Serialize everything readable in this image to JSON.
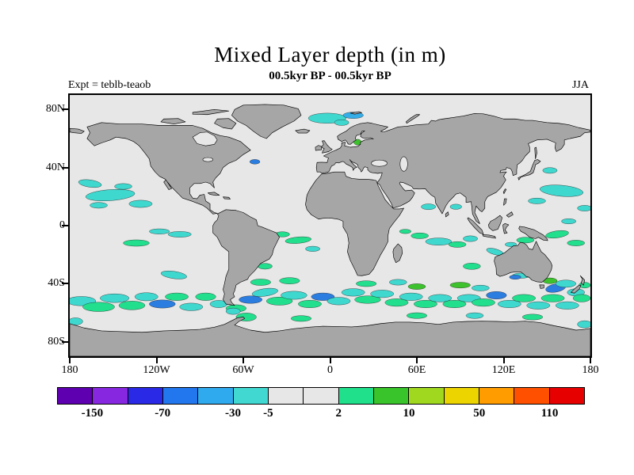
{
  "header": {
    "title": "Mixed Layer depth (in m)",
    "subtitle": "00.5kyr BP - 00.5kyr BP",
    "experiment": "Expt = teblb-teaob",
    "season": "JJA"
  },
  "map": {
    "ocean_color": "#e7e7e7",
    "land_color": "#a6a6a6",
    "lat_ticks": [
      {
        "label": "80N",
        "lat": 80
      },
      {
        "label": "40N",
        "lat": 40
      },
      {
        "label": "0",
        "lat": 0
      },
      {
        "label": "40S",
        "lat": -40
      },
      {
        "label": "80S",
        "lat": -80
      }
    ],
    "lon_ticks": [
      {
        "label": "180",
        "lon": -180
      },
      {
        "label": "120W",
        "lon": -120
      },
      {
        "label": "60W",
        "lon": -60
      },
      {
        "label": "0",
        "lon": 0
      },
      {
        "label": "60E",
        "lon": 60
      },
      {
        "label": "120E",
        "lon": 120
      },
      {
        "label": "180",
        "lon": 180
      }
    ]
  },
  "colorbar": {
    "tick_labels": [
      "-150",
      "-70",
      "-30",
      "-5",
      "2",
      "10",
      "50",
      "110"
    ],
    "tick_boundaries": [
      1,
      3,
      5,
      6,
      8,
      10,
      12,
      14
    ],
    "colors": [
      "#5e00b0",
      "#8727e0",
      "#2a2ae6",
      "#2277ee",
      "#30aaee",
      "#40d8d0",
      "#e7e7e7",
      "#e7e7e7",
      "#20e08c",
      "#38c42a",
      "#a0d820",
      "#ecd400",
      "#ff9c00",
      "#ff5000",
      "#e60000"
    ]
  },
  "anomaly_palette": {
    "blue": "#2b7de0",
    "lightblue": "#35aee8",
    "cyan": "#3fd8cf",
    "spring": "#22df8e",
    "green": "#3dc22e"
  },
  "anomaly_regions": [
    [
      -2,
      74,
      13,
      3.5,
      0,
      "cyan"
    ],
    [
      16,
      76,
      7,
      2.2,
      0,
      "lightblue"
    ],
    [
      8,
      71,
      5,
      2,
      0,
      "cyan"
    ],
    [
      19,
      57.5,
      2.6,
      2,
      0,
      "green"
    ],
    [
      -88,
      58,
      3,
      2,
      0,
      "cyan"
    ],
    [
      -52,
      44,
      3.5,
      1.6,
      0,
      "blue"
    ],
    [
      -152,
      21,
      17,
      3.8,
      4,
      "cyan"
    ],
    [
      -166,
      29,
      8,
      2.5,
      -8,
      "cyan"
    ],
    [
      -131,
      15,
      8,
      2.5,
      0,
      "cyan"
    ],
    [
      -143,
      27,
      6,
      2,
      0,
      "cyan"
    ],
    [
      -160,
      14,
      6,
      2,
      0,
      "cyan"
    ],
    [
      152,
      38,
      5,
      2,
      0,
      "cyan"
    ],
    [
      160,
      24,
      15,
      3.8,
      -5,
      "cyan"
    ],
    [
      143,
      17,
      6,
      2,
      0,
      "cyan"
    ],
    [
      176,
      12,
      5,
      2,
      0,
      "cyan"
    ],
    [
      -134,
      -12,
      9,
      2.2,
      0,
      "spring"
    ],
    [
      -104,
      -6,
      8,
      2,
      0,
      "cyan"
    ],
    [
      -118,
      -4,
      7,
      1.8,
      0,
      "cyan"
    ],
    [
      157,
      -6,
      8,
      2.4,
      8,
      "spring"
    ],
    [
      170,
      -12,
      6,
      2,
      0,
      "spring"
    ],
    [
      165,
      3,
      5,
      1.8,
      0,
      "cyan"
    ],
    [
      -22,
      -10,
      9,
      2.2,
      5,
      "spring"
    ],
    [
      -33,
      -6,
      5,
      1.8,
      0,
      "spring"
    ],
    [
      -12,
      -16,
      5,
      1.8,
      0,
      "cyan"
    ],
    [
      68,
      13,
      5,
      2,
      0,
      "cyan"
    ],
    [
      87,
      13,
      4,
      1.8,
      0,
      "cyan"
    ],
    [
      75,
      -11,
      9,
      2.5,
      0,
      "cyan"
    ],
    [
      62,
      -7,
      6,
      2,
      0,
      "spring"
    ],
    [
      88,
      -13,
      6,
      2,
      0,
      "spring"
    ],
    [
      97,
      -9,
      5,
      2,
      0,
      "cyan"
    ],
    [
      52,
      -4,
      4,
      1.5,
      0,
      "spring"
    ],
    [
      98,
      -28,
      6,
      2.2,
      0,
      "spring"
    ],
    [
      114,
      -18,
      6,
      2,
      -15,
      "cyan"
    ],
    [
      135,
      -10,
      6,
      2,
      0,
      "spring"
    ],
    [
      125,
      -13,
      4,
      1.5,
      0,
      "cyan"
    ],
    [
      132,
      -34.5,
      6,
      1.8,
      0,
      "cyan"
    ],
    [
      128,
      -35.5,
      4,
      1.5,
      0,
      "blue"
    ],
    [
      141,
      -35,
      4,
      1.6,
      0,
      "cyan"
    ],
    [
      152,
      -38,
      5,
      2,
      0,
      "green"
    ],
    [
      156,
      -43,
      7,
      2.8,
      10,
      "blue"
    ],
    [
      163,
      -40,
      7,
      2.5,
      0,
      "cyan"
    ],
    [
      170,
      -46,
      6,
      2.5,
      0,
      "cyan"
    ],
    [
      176,
      -41,
      4,
      2,
      0,
      "spring"
    ],
    [
      -172,
      -52,
      10,
      3.2,
      0,
      "cyan"
    ],
    [
      -160,
      -56,
      11,
      3.2,
      0,
      "spring"
    ],
    [
      -149,
      -50,
      10,
      3,
      0,
      "cyan"
    ],
    [
      -137,
      -55,
      9,
      3,
      0,
      "spring"
    ],
    [
      -127,
      -49,
      8,
      2.8,
      0,
      "cyan"
    ],
    [
      -116,
      -54,
      9,
      2.8,
      0,
      "blue"
    ],
    [
      -106,
      -49,
      8,
      2.6,
      0,
      "spring"
    ],
    [
      -96,
      -56,
      8,
      2.6,
      0,
      "cyan"
    ],
    [
      -86,
      -49,
      7,
      2.6,
      0,
      "spring"
    ],
    [
      -108,
      -34,
      9,
      2.5,
      -8,
      "cyan"
    ],
    [
      -77,
      -54,
      6,
      2.5,
      0,
      "cyan"
    ],
    [
      -65,
      -57,
      7,
      2.5,
      0,
      "spring"
    ],
    [
      -55,
      -51,
      8,
      2.6,
      0,
      "blue"
    ],
    [
      -45,
      -46,
      9,
      2.6,
      8,
      "cyan"
    ],
    [
      -48,
      -39,
      7,
      2.2,
      0,
      "spring"
    ],
    [
      -45,
      -28,
      5,
      2,
      0,
      "spring"
    ],
    [
      -35,
      -52,
      9,
      2.8,
      0,
      "spring"
    ],
    [
      -25,
      -48,
      9,
      2.8,
      0,
      "cyan"
    ],
    [
      -14,
      -54,
      8,
      2.6,
      0,
      "spring"
    ],
    [
      -5,
      -49,
      8,
      2.6,
      0,
      "blue"
    ],
    [
      -28,
      -38,
      7,
      2.2,
      0,
      "spring"
    ],
    [
      6,
      -52,
      8,
      2.6,
      0,
      "cyan"
    ],
    [
      16,
      -46,
      8,
      2.6,
      0,
      "cyan"
    ],
    [
      25,
      -40,
      7,
      2,
      0,
      "spring"
    ],
    [
      26,
      -51,
      9,
      2.6,
      0,
      "spring"
    ],
    [
      36,
      -47,
      8,
      2.6,
      0,
      "cyan"
    ],
    [
      46,
      -53,
      8,
      2.6,
      0,
      "spring"
    ],
    [
      47,
      -39,
      6,
      2,
      0,
      "cyan"
    ],
    [
      56,
      -49,
      8,
      2.6,
      0,
      "cyan"
    ],
    [
      60,
      -42,
      6,
      2,
      0,
      "green"
    ],
    [
      66,
      -54,
      8,
      2.6,
      0,
      "spring"
    ],
    [
      76,
      -50,
      8,
      2.6,
      0,
      "cyan"
    ],
    [
      86,
      -54,
      8,
      2.6,
      0,
      "spring"
    ],
    [
      90,
      -41,
      7,
      2,
      0,
      "green"
    ],
    [
      96,
      -50,
      8,
      2.6,
      0,
      "cyan"
    ],
    [
      106,
      -53,
      8,
      2.6,
      0,
      "spring"
    ],
    [
      104,
      -43,
      6,
      2,
      0,
      "cyan"
    ],
    [
      115,
      -48,
      7,
      2.6,
      0,
      "blue"
    ],
    [
      124,
      -54,
      8,
      2.6,
      0,
      "cyan"
    ],
    [
      134,
      -50,
      8,
      2.6,
      0,
      "spring"
    ],
    [
      144,
      -55,
      8,
      2.6,
      0,
      "cyan"
    ],
    [
      154,
      -50,
      8,
      2.6,
      0,
      "spring"
    ],
    [
      164,
      -55,
      8,
      2.6,
      0,
      "cyan"
    ],
    [
      174,
      -50,
      6,
      2.6,
      0,
      "spring"
    ],
    [
      -58,
      -63,
      7,
      2.8,
      0,
      "spring"
    ],
    [
      -67,
      -59,
      5,
      2.2,
      0,
      "cyan"
    ],
    [
      -20,
      -64,
      7,
      2,
      0,
      "spring"
    ],
    [
      60,
      -62,
      7,
      2,
      0,
      "spring"
    ],
    [
      100,
      -62,
      6,
      2,
      0,
      "cyan"
    ],
    [
      140,
      -63,
      7,
      2,
      0,
      "spring"
    ],
    [
      176,
      -68,
      5,
      2.5,
      0,
      "cyan"
    ],
    [
      -176,
      -66,
      5,
      2.5,
      0,
      "cyan"
    ]
  ]
}
